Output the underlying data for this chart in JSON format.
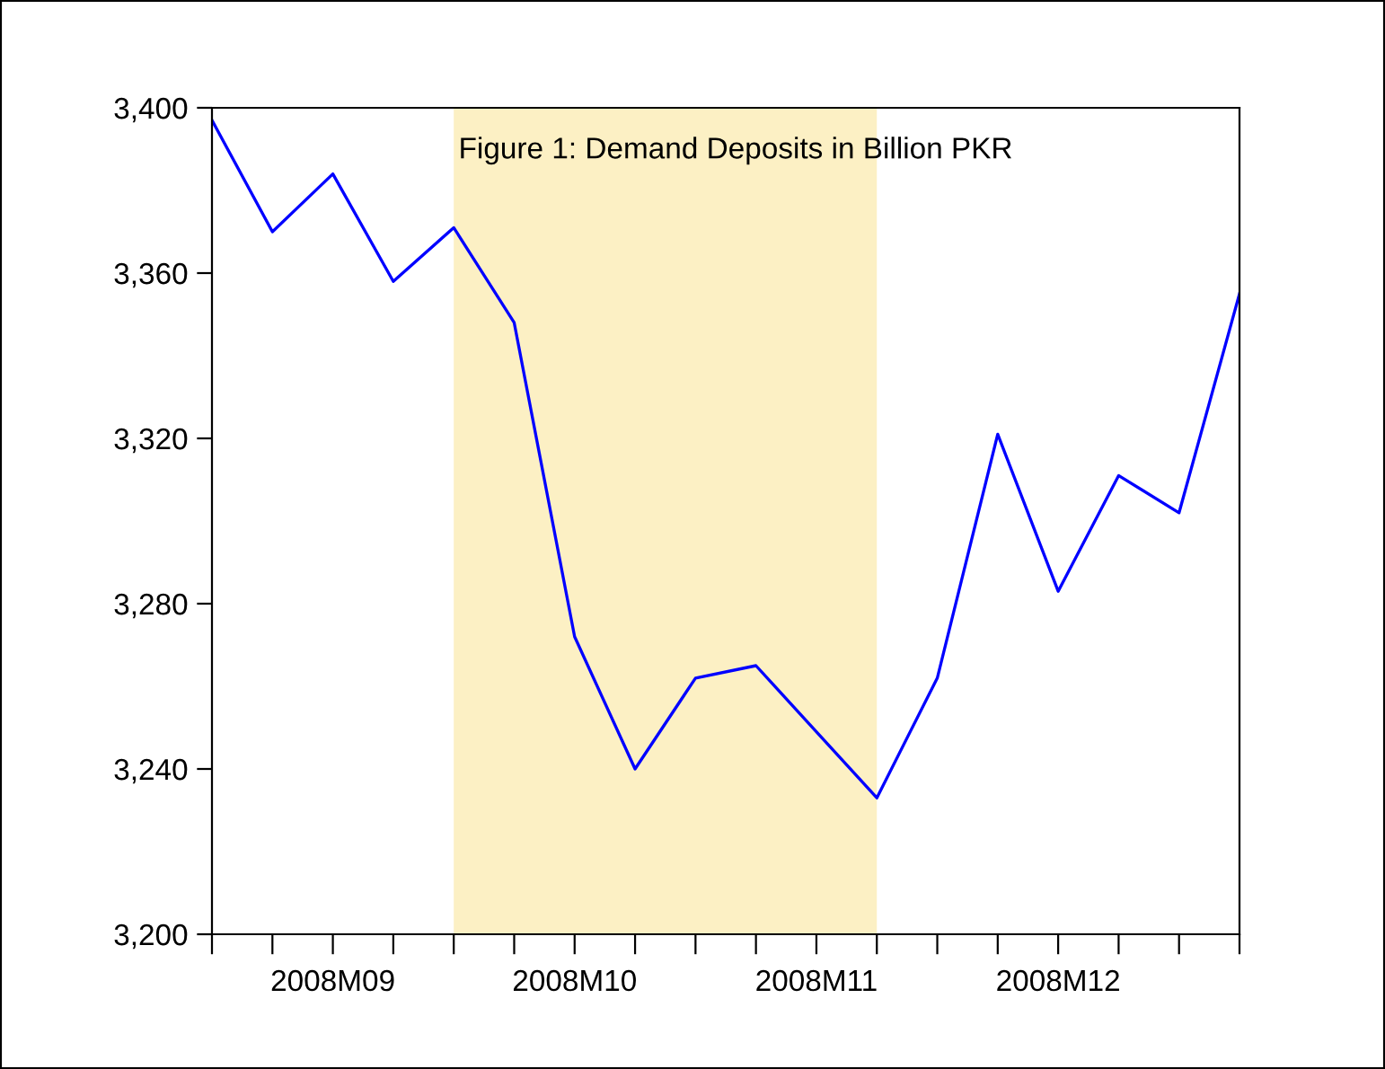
{
  "chart_data": {
    "type": "line",
    "title": "Figure 1: Demand Deposits in Billion PKR",
    "categories": [
      null,
      null,
      "2008M09",
      null,
      null,
      null,
      "2008M10",
      null,
      null,
      null,
      "2008M11",
      null,
      null,
      null,
      "2008M12",
      null,
      null,
      null
    ],
    "series": [
      {
        "color": "#0000ff",
        "values": [
          3397,
          3370,
          3384,
          3358,
          3371,
          3348,
          3272,
          3240,
          3262,
          3265,
          3249,
          3233,
          3262,
          3321,
          3283,
          3311,
          3302,
          3355
        ]
      }
    ],
    "ylim": [
      3200,
      3400
    ],
    "yticks": [
      {
        "value": 3200,
        "label": "3,200"
      },
      {
        "value": 3240,
        "label": "3,240"
      },
      {
        "value": 3280,
        "label": "3,280"
      },
      {
        "value": 3320,
        "label": "3,320"
      },
      {
        "value": 3360,
        "label": "3,360"
      },
      {
        "value": 3400,
        "label": "3,400"
      }
    ],
    "grid": false,
    "legend": false,
    "line_style": "solid",
    "marker": "none"
  }
}
